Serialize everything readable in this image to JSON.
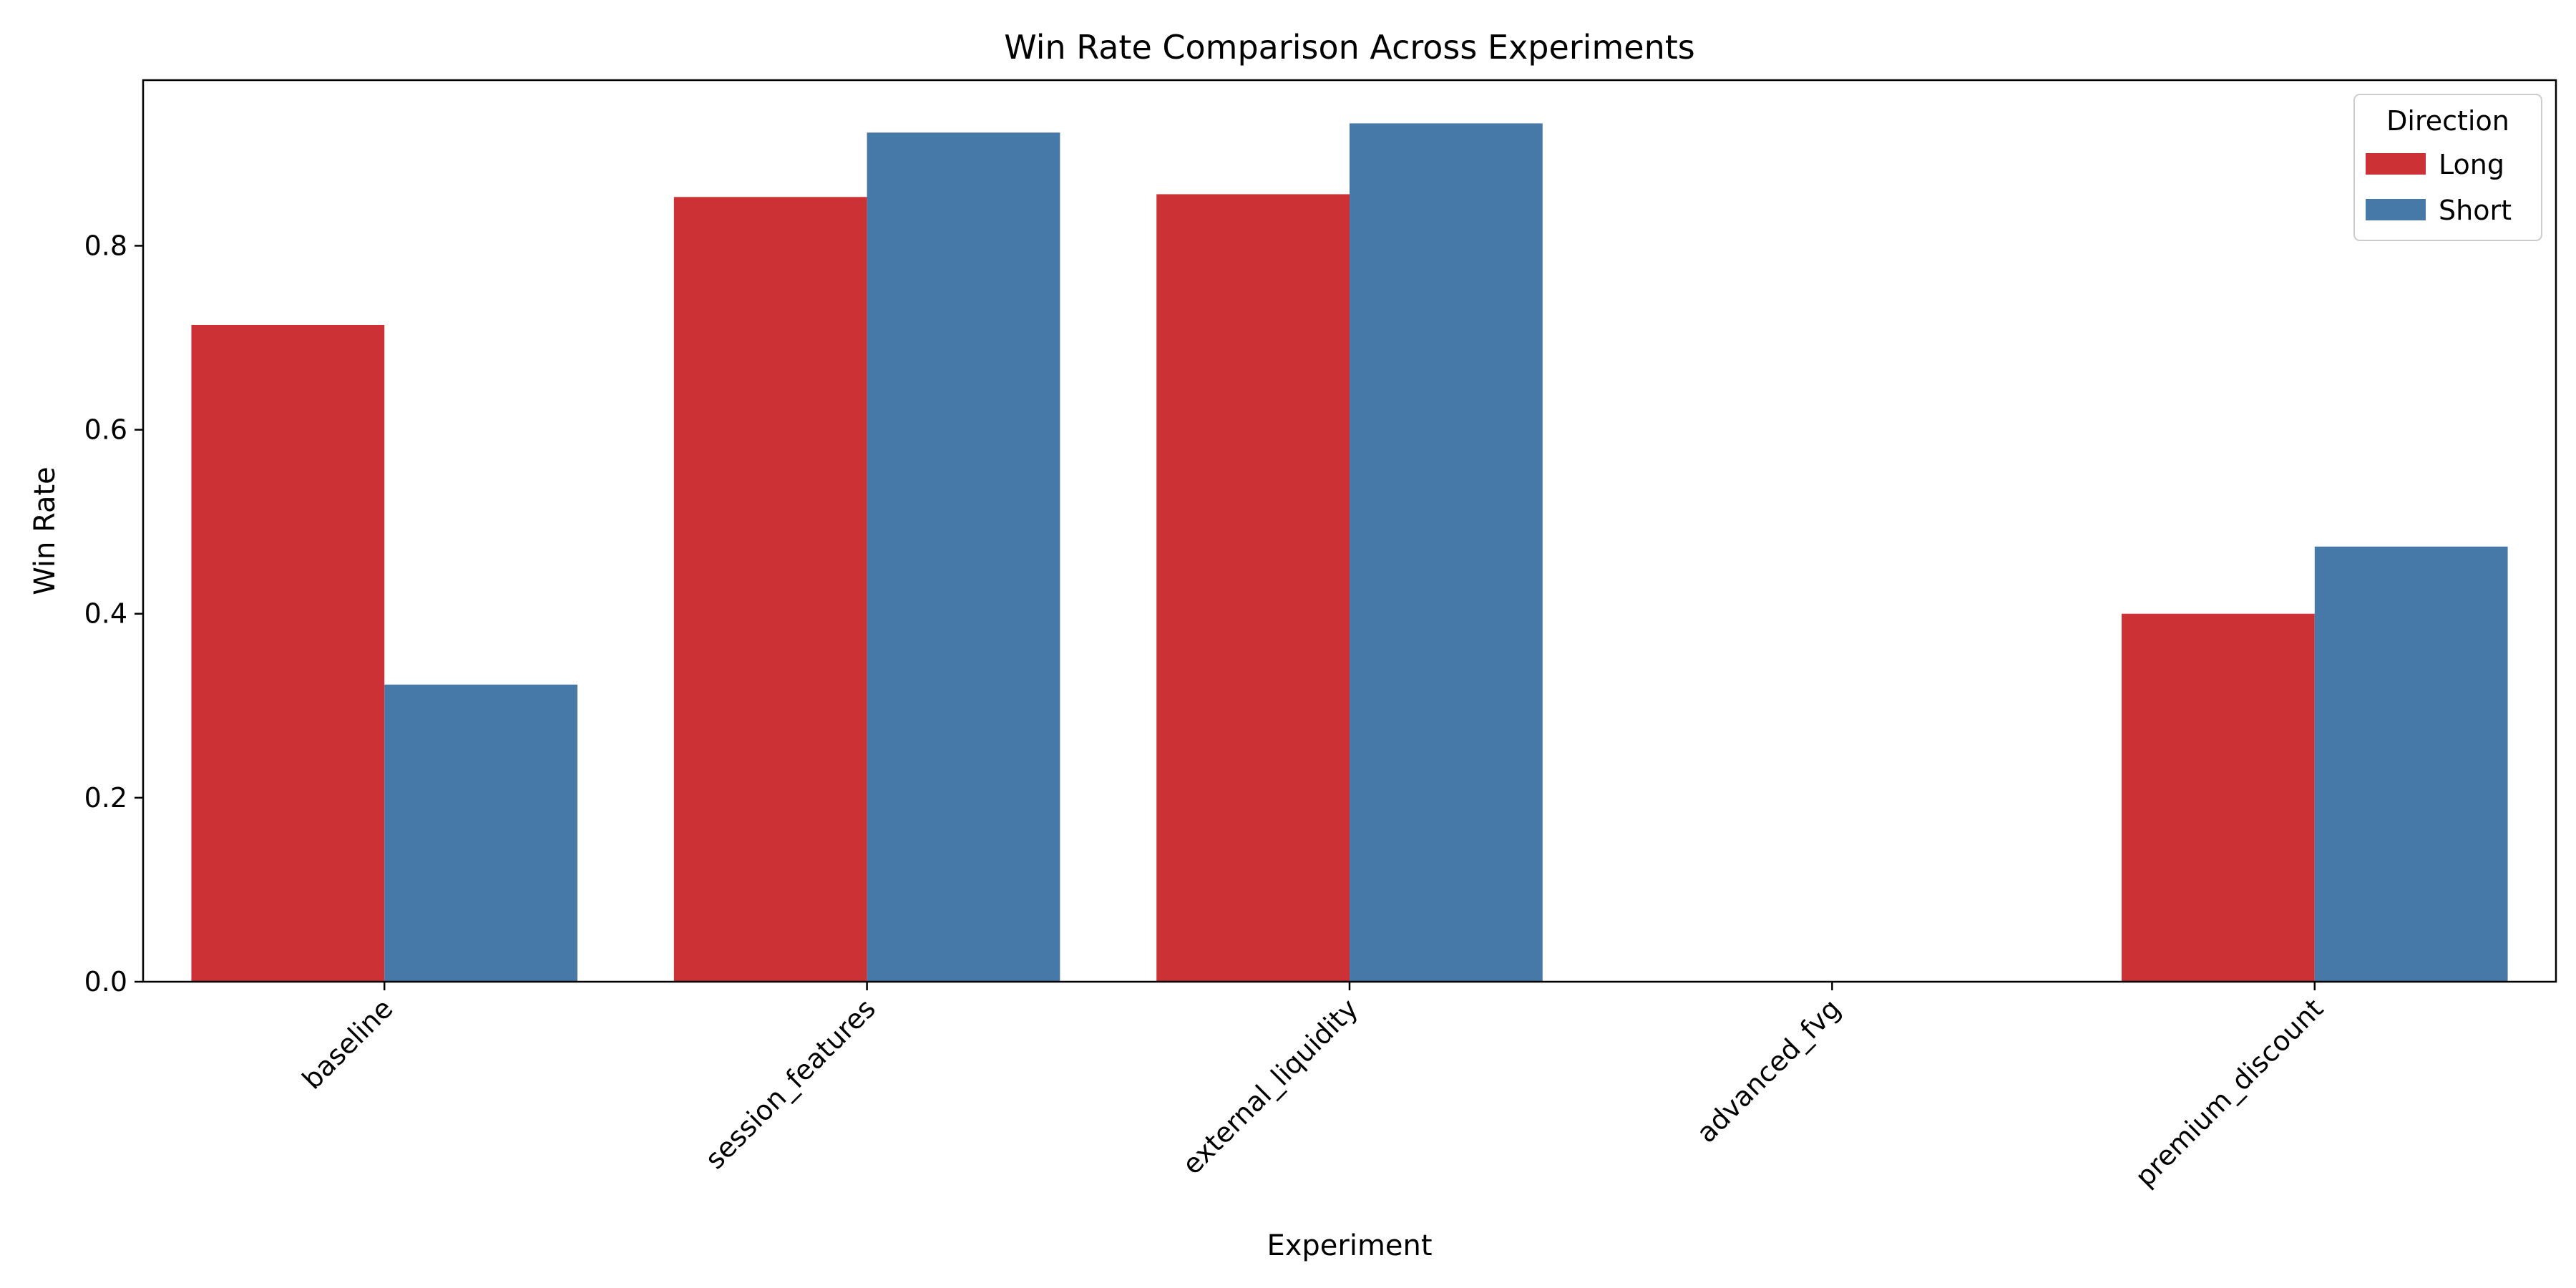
{
  "chart_data": {
    "type": "bar",
    "title": "Win Rate Comparison Across Experiments",
    "xlabel": "Experiment",
    "ylabel": "Win Rate",
    "categories": [
      "baseline",
      "session_features",
      "external_liquidity",
      "advanced_fvg",
      "premium_discount"
    ],
    "series": [
      {
        "name": "Long",
        "color": "#cc3135",
        "values": [
          0.714,
          0.853,
          0.856,
          0.0,
          0.4
        ]
      },
      {
        "name": "Short",
        "color": "#4679a8",
        "values": [
          0.323,
          0.923,
          0.933,
          0.0,
          0.473
        ]
      }
    ],
    "ylim": [
      0,
      0.98
    ],
    "yticks": [
      0.0,
      0.2,
      0.4,
      0.6,
      0.8
    ],
    "ytick_labels": [
      "0.0",
      "0.2",
      "0.4",
      "0.6",
      "0.8"
    ],
    "grid": false,
    "legend": {
      "title": "Direction",
      "placement": "top-right"
    }
  }
}
